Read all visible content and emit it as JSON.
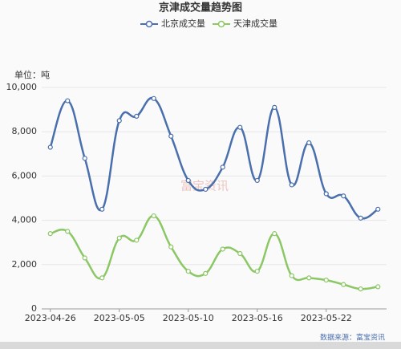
{
  "chart_data": {
    "type": "line",
    "title": "京津成交量趋势图",
    "unit_label": "单位：吨",
    "source": "数据来源：富宝资讯",
    "watermark": "富宝资讯",
    "categories": [
      "2023-04-26",
      null,
      null,
      null,
      "2023-05-05",
      null,
      null,
      null,
      "2023-05-10",
      null,
      null,
      null,
      "2023-05-16",
      null,
      null,
      null,
      "2023-05-22",
      null,
      null,
      null
    ],
    "series": [
      {
        "name": "北京成交量",
        "color": "#4a6fad",
        "values": [
          7300,
          9400,
          6800,
          4500,
          8500,
          8700,
          9500,
          7800,
          5800,
          5400,
          6400,
          8200,
          5800,
          9100,
          5600,
          7500,
          5200,
          5100,
          4100,
          4500
        ]
      },
      {
        "name": "天津成交量",
        "color": "#8cc765",
        "values": [
          3400,
          3500,
          2300,
          1400,
          3200,
          3100,
          4200,
          2800,
          1700,
          1600,
          2700,
          2500,
          1700,
          3400,
          1500,
          1400,
          1300,
          1100,
          900,
          1000
        ]
      }
    ],
    "ylim": [
      0,
      10000
    ],
    "yticks": [
      0,
      {
        "value": 2000,
        "label": "2,000"
      },
      {
        "value": 4000,
        "label": "4,000"
      },
      {
        "value": 6000,
        "label": "6,000"
      },
      {
        "value": 8000,
        "label": "8,000"
      },
      {
        "value": 10000,
        "label": "10,000"
      }
    ],
    "grid": true
  }
}
